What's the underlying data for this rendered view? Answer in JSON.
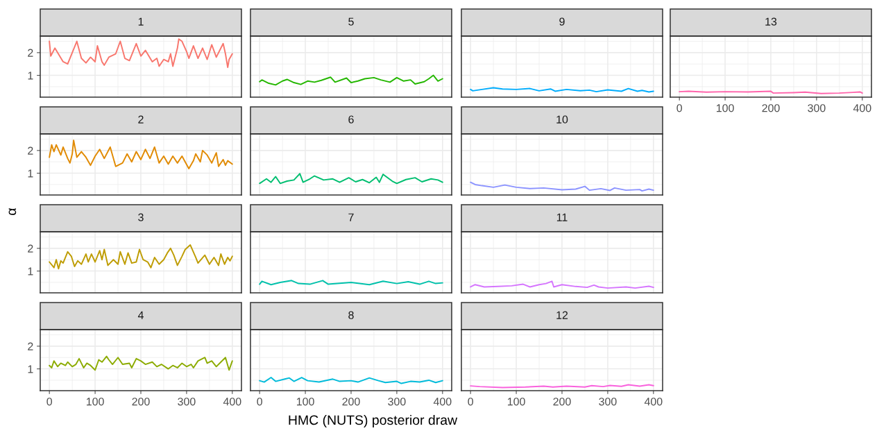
{
  "chart_data": [
    {
      "type": "line",
      "title": "1",
      "tick_labels": "y",
      "xlim": [
        -20,
        420
      ],
      "ylim": [
        0.04,
        2.73
      ],
      "xticks": [
        0,
        100,
        200,
        300,
        400
      ],
      "yticks": [
        1,
        2
      ],
      "grid": true,
      "legend": false,
      "series": [
        {
          "color": "#f8766d",
          "x": [
            0,
            3,
            12,
            30,
            40,
            60,
            70,
            80,
            90,
            100,
            105,
            115,
            120,
            130,
            145,
            155,
            165,
            175,
            190,
            200,
            210,
            225,
            235,
            240,
            250,
            260,
            265,
            270,
            280,
            283,
            290,
            300,
            305,
            315,
            325,
            335,
            345,
            355,
            365,
            380,
            385,
            390,
            393,
            400
          ],
          "values": [
            2.5,
            1.85,
            2.2,
            1.6,
            1.5,
            2.5,
            1.75,
            1.55,
            1.8,
            1.6,
            2.3,
            1.6,
            1.45,
            1.8,
            1.95,
            2.5,
            1.75,
            1.65,
            2.4,
            1.85,
            2.1,
            1.6,
            1.75,
            1.4,
            1.7,
            1.6,
            1.95,
            1.4,
            2.2,
            2.6,
            2.5,
            2.05,
            1.75,
            2.3,
            1.75,
            2.2,
            1.7,
            2.35,
            1.8,
            2.4,
            1.95,
            1.35,
            1.7,
            1.95
          ]
        }
      ]
    },
    {
      "type": "line",
      "title": "2",
      "tick_labels": "y",
      "xlim": [
        -20,
        420
      ],
      "ylim": [
        0.04,
        2.73
      ],
      "xticks": [
        0,
        100,
        200,
        300,
        400
      ],
      "yticks": [
        1,
        2
      ],
      "grid": true,
      "legend": false,
      "series": [
        {
          "color": "#e18a00",
          "x": [
            0,
            5,
            10,
            15,
            25,
            30,
            40,
            45,
            50,
            53,
            60,
            70,
            80,
            90,
            100,
            110,
            120,
            133,
            145,
            160,
            170,
            180,
            190,
            200,
            210,
            220,
            230,
            240,
            250,
            260,
            270,
            280,
            290,
            305,
            315,
            320,
            330,
            335,
            345,
            355,
            365,
            370,
            380,
            385,
            390,
            400
          ],
          "values": [
            1.7,
            2.25,
            1.95,
            2.25,
            1.8,
            2.15,
            1.65,
            1.45,
            1.85,
            2.45,
            1.7,
            1.95,
            1.7,
            1.35,
            1.75,
            2.05,
            1.65,
            2.15,
            1.3,
            1.45,
            1.85,
            1.5,
            1.95,
            1.6,
            2.05,
            1.65,
            2.15,
            1.45,
            1.75,
            1.4,
            1.75,
            1.45,
            1.75,
            1.2,
            1.55,
            1.85,
            1.5,
            2.0,
            1.8,
            1.45,
            1.9,
            1.3,
            1.6,
            1.35,
            1.55,
            1.4
          ]
        }
      ]
    },
    {
      "type": "line",
      "title": "3",
      "ylabel": "α",
      "tick_labels": "y",
      "xlim": [
        -20,
        420
      ],
      "ylim": [
        0.04,
        2.73
      ],
      "xticks": [
        0,
        100,
        200,
        300,
        400
      ],
      "yticks": [
        1,
        2
      ],
      "grid": true,
      "legend": false,
      "series": [
        {
          "color": "#be9c00",
          "x": [
            0,
            10,
            15,
            20,
            25,
            30,
            40,
            48,
            55,
            62,
            70,
            80,
            85,
            92,
            100,
            110,
            115,
            120,
            128,
            140,
            150,
            155,
            165,
            172,
            180,
            190,
            197,
            205,
            215,
            222,
            230,
            240,
            250,
            258,
            265,
            272,
            280,
            290,
            297,
            308,
            320,
            325,
            340,
            350,
            360,
            370,
            375,
            383,
            390,
            395,
            400
          ],
          "values": [
            1.4,
            1.15,
            1.5,
            1.1,
            1.45,
            1.35,
            1.85,
            1.65,
            1.2,
            1.45,
            1.3,
            1.75,
            1.4,
            1.75,
            1.4,
            1.9,
            1.5,
            1.95,
            1.25,
            1.5,
            1.3,
            1.85,
            1.3,
            1.8,
            1.35,
            1.4,
            1.95,
            1.5,
            1.4,
            1.15,
            1.6,
            1.3,
            1.5,
            1.8,
            2.0,
            1.7,
            1.25,
            1.65,
            1.95,
            2.15,
            1.6,
            1.35,
            1.7,
            1.3,
            1.6,
            1.25,
            1.75,
            1.3,
            1.6,
            1.45,
            1.65
          ]
        }
      ]
    },
    {
      "type": "line",
      "title": "4",
      "xlim": [
        -20,
        420
      ],
      "ylim": [
        0.04,
        2.73
      ],
      "xticks": [
        0,
        100,
        200,
        300,
        400
      ],
      "yticks": [
        1,
        2
      ],
      "grid": true,
      "legend": false,
      "series": [
        {
          "color": "#8cab00",
          "x": [
            0,
            5,
            10,
            18,
            25,
            35,
            40,
            50,
            58,
            65,
            75,
            82,
            90,
            100,
            108,
            115,
            125,
            130,
            138,
            150,
            160,
            175,
            180,
            190,
            200,
            210,
            225,
            235,
            245,
            260,
            270,
            280,
            290,
            300,
            310,
            315,
            325,
            340,
            345,
            355,
            365,
            375,
            385,
            393,
            400
          ],
          "values": [
            1.15,
            1.05,
            1.35,
            1.1,
            1.25,
            1.15,
            1.3,
            1.1,
            1.2,
            1.45,
            1.05,
            1.25,
            1.15,
            0.95,
            1.4,
            1.3,
            1.55,
            1.4,
            1.2,
            1.5,
            1.2,
            1.25,
            1.05,
            1.45,
            1.35,
            1.2,
            1.3,
            1.1,
            1.2,
            1.0,
            1.15,
            1.05,
            1.25,
            1.1,
            1.2,
            1.05,
            1.35,
            1.5,
            1.25,
            1.35,
            1.1,
            1.3,
            1.5,
            0.95,
            1.35
          ]
        }
      ]
    },
    {
      "type": "line",
      "title": "5",
      "tick_labels": false,
      "xlim": [
        -20,
        420
      ],
      "ylim": [
        0.04,
        2.73
      ],
      "xticks": [
        0,
        100,
        200,
        300,
        400
      ],
      "yticks": [
        1,
        2
      ],
      "grid": true,
      "legend": false,
      "series": [
        {
          "color": "#24b700",
          "x": [
            0,
            5,
            20,
            35,
            50,
            60,
            75,
            90,
            105,
            120,
            135,
            155,
            165,
            190,
            200,
            215,
            230,
            250,
            265,
            285,
            300,
            315,
            330,
            340,
            360,
            370,
            380,
            390,
            400
          ],
          "values": [
            0.72,
            0.8,
            0.65,
            0.58,
            0.75,
            0.82,
            0.68,
            0.6,
            0.75,
            0.7,
            0.78,
            0.92,
            0.7,
            0.88,
            0.68,
            0.75,
            0.85,
            0.9,
            0.8,
            0.7,
            0.9,
            0.75,
            0.8,
            0.62,
            0.72,
            0.85,
            1.0,
            0.75,
            0.85
          ]
        }
      ]
    },
    {
      "type": "line",
      "title": "6",
      "tick_labels": false,
      "xlim": [
        -20,
        420
      ],
      "ylim": [
        0.04,
        2.73
      ],
      "xticks": [
        0,
        100,
        200,
        300,
        400
      ],
      "yticks": [
        1,
        2
      ],
      "grid": true,
      "legend": false,
      "series": [
        {
          "color": "#00be70",
          "x": [
            0,
            15,
            25,
            35,
            45,
            60,
            75,
            88,
            95,
            110,
            120,
            140,
            160,
            175,
            195,
            210,
            225,
            240,
            255,
            262,
            270,
            290,
            300,
            320,
            340,
            355,
            375,
            390,
            400
          ],
          "values": [
            0.55,
            0.75,
            0.6,
            0.85,
            0.55,
            0.65,
            0.7,
            0.98,
            0.6,
            0.75,
            0.88,
            0.7,
            0.75,
            0.6,
            0.8,
            0.62,
            0.72,
            0.58,
            0.82,
            0.6,
            0.95,
            0.65,
            0.55,
            0.72,
            0.8,
            0.62,
            0.75,
            0.7,
            0.6
          ]
        }
      ]
    },
    {
      "type": "line",
      "title": "7",
      "tick_labels": false,
      "xlim": [
        -20,
        420
      ],
      "ylim": [
        0.04,
        2.73
      ],
      "xticks": [
        0,
        100,
        200,
        300,
        400
      ],
      "yticks": [
        1,
        2
      ],
      "grid": true,
      "legend": false,
      "series": [
        {
          "color": "#00c1ab",
          "x": [
            0,
            5,
            25,
            45,
            70,
            85,
            110,
            138,
            150,
            200,
            240,
            270,
            300,
            325,
            350,
            370,
            385,
            400
          ],
          "values": [
            0.42,
            0.55,
            0.4,
            0.5,
            0.58,
            0.45,
            0.42,
            0.58,
            0.42,
            0.5,
            0.4,
            0.55,
            0.45,
            0.53,
            0.42,
            0.55,
            0.45,
            0.48
          ]
        }
      ]
    },
    {
      "type": "line",
      "title": "8",
      "xlabel": "HMC (NUTS) posterior draw",
      "tick_labels": "x",
      "xlim": [
        -20,
        420
      ],
      "ylim": [
        0.04,
        2.73
      ],
      "xticks": [
        0,
        100,
        200,
        300,
        400
      ],
      "yticks": [
        1,
        2
      ],
      "grid": true,
      "legend": false,
      "series": [
        {
          "color": "#00bbda",
          "x": [
            0,
            10,
            25,
            35,
            55,
            65,
            75,
            92,
            105,
            130,
            160,
            175,
            200,
            215,
            240,
            260,
            275,
            300,
            310,
            330,
            350,
            370,
            385,
            400
          ],
          "values": [
            0.48,
            0.42,
            0.62,
            0.45,
            0.55,
            0.6,
            0.45,
            0.62,
            0.48,
            0.42,
            0.55,
            0.45,
            0.48,
            0.42,
            0.6,
            0.48,
            0.4,
            0.45,
            0.36,
            0.45,
            0.42,
            0.5,
            0.4,
            0.48
          ]
        }
      ]
    },
    {
      "type": "line",
      "title": "9",
      "tick_labels": false,
      "xlim": [
        -20,
        420
      ],
      "ylim": [
        0.04,
        2.73
      ],
      "xticks": [
        0,
        100,
        200,
        300,
        400
      ],
      "yticks": [
        1,
        2
      ],
      "grid": true,
      "legend": false,
      "series": [
        {
          "color": "#00acfc",
          "x": [
            0,
            5,
            25,
            50,
            70,
            100,
            130,
            150,
            175,
            185,
            210,
            240,
            260,
            275,
            300,
            330,
            345,
            365,
            375,
            390,
            400
          ],
          "values": [
            0.38,
            0.32,
            0.38,
            0.45,
            0.4,
            0.38,
            0.42,
            0.32,
            0.4,
            0.3,
            0.38,
            0.32,
            0.35,
            0.28,
            0.36,
            0.3,
            0.42,
            0.3,
            0.34,
            0.27,
            0.3
          ]
        }
      ]
    },
    {
      "type": "line",
      "title": "10",
      "tick_labels": false,
      "xlim": [
        -20,
        420
      ],
      "ylim": [
        0.04,
        2.73
      ],
      "xticks": [
        0,
        100,
        200,
        300,
        400
      ],
      "yticks": [
        1,
        2
      ],
      "grid": true,
      "legend": false,
      "series": [
        {
          "color": "#8b93ff",
          "x": [
            0,
            10,
            25,
            50,
            75,
            100,
            130,
            160,
            200,
            230,
            250,
            260,
            285,
            305,
            315,
            340,
            370,
            375,
            390,
            400
          ],
          "values": [
            0.6,
            0.5,
            0.45,
            0.38,
            0.48,
            0.38,
            0.32,
            0.35,
            0.27,
            0.3,
            0.42,
            0.25,
            0.32,
            0.24,
            0.35,
            0.25,
            0.28,
            0.22,
            0.3,
            0.25
          ]
        }
      ]
    },
    {
      "type": "line",
      "title": "11",
      "tick_labels": false,
      "xlim": [
        -20,
        420
      ],
      "ylim": [
        0.04,
        2.73
      ],
      "xticks": [
        0,
        100,
        200,
        300,
        400
      ],
      "yticks": [
        1,
        2
      ],
      "grid": true,
      "legend": false,
      "series": [
        {
          "color": "#d575fe",
          "x": [
            0,
            10,
            30,
            60,
            90,
            115,
            130,
            150,
            165,
            178,
            182,
            200,
            230,
            255,
            270,
            280,
            300,
            340,
            360,
            390,
            400
          ],
          "values": [
            0.3,
            0.4,
            0.3,
            0.32,
            0.35,
            0.42,
            0.3,
            0.4,
            0.45,
            0.55,
            0.3,
            0.4,
            0.32,
            0.28,
            0.38,
            0.3,
            0.25,
            0.3,
            0.25,
            0.33,
            0.28
          ]
        }
      ]
    },
    {
      "type": "line",
      "title": "12",
      "tick_labels": "x",
      "xlim": [
        -20,
        420
      ],
      "ylim": [
        0.04,
        2.73
      ],
      "xticks": [
        0,
        100,
        200,
        300,
        400
      ],
      "yticks": [
        1,
        2
      ],
      "grid": true,
      "legend": false,
      "series": [
        {
          "color": "#f962dd",
          "x": [
            0,
            20,
            70,
            120,
            160,
            180,
            210,
            250,
            265,
            290,
            305,
            330,
            345,
            370,
            390,
            400
          ],
          "values": [
            0.25,
            0.22,
            0.18,
            0.2,
            0.24,
            0.2,
            0.24,
            0.2,
            0.26,
            0.22,
            0.27,
            0.23,
            0.3,
            0.24,
            0.3,
            0.26
          ]
        }
      ]
    },
    {
      "type": "line",
      "title": "13",
      "tick_labels": "x",
      "xlim": [
        -20,
        420
      ],
      "ylim": [
        0.04,
        2.73
      ],
      "xticks": [
        0,
        100,
        200,
        300,
        400
      ],
      "yticks": [
        1,
        2
      ],
      "grid": true,
      "legend": false,
      "series": [
        {
          "color": "#ff65ac",
          "x": [
            0,
            20,
            60,
            100,
            150,
            200,
            205,
            250,
            275,
            310,
            350,
            380,
            395,
            400
          ],
          "values": [
            0.28,
            0.3,
            0.26,
            0.28,
            0.27,
            0.3,
            0.22,
            0.24,
            0.26,
            0.2,
            0.22,
            0.25,
            0.27,
            0.22
          ]
        }
      ]
    }
  ]
}
